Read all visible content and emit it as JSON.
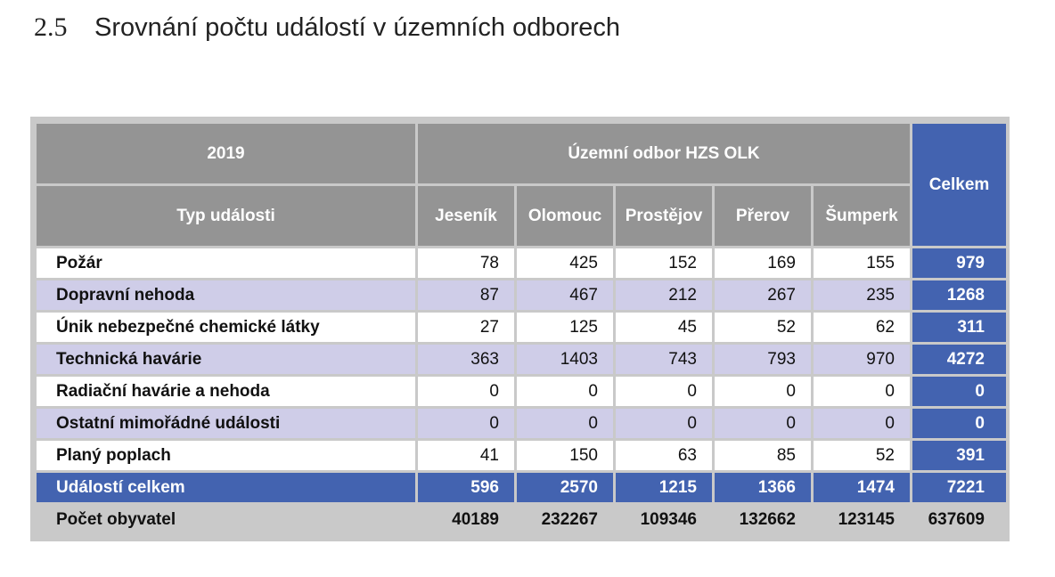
{
  "section": {
    "number": "2.5",
    "title": "Srovnání počtu událostí v územních odborech"
  },
  "table": {
    "year": "2019",
    "group_header": "Územní odbor HZS OLK",
    "type_header": "Typ události",
    "total_header": "Celkem",
    "columns": [
      "Jeseník",
      "Olomouc",
      "Prostějov",
      "Přerov",
      "Šumperk"
    ],
    "rows": [
      {
        "label": "Požár",
        "values": [
          "78",
          "425",
          "152",
          "169",
          "155"
        ],
        "total": "979"
      },
      {
        "label": "Dopravní nehoda",
        "values": [
          "87",
          "467",
          "212",
          "267",
          "235"
        ],
        "total": "1268"
      },
      {
        "label": "Únik nebezpečné chemické látky",
        "values": [
          "27",
          "125",
          "45",
          "52",
          "62"
        ],
        "total": "311"
      },
      {
        "label": "Technická havárie",
        "values": [
          "363",
          "1403",
          "743",
          "793",
          "970"
        ],
        "total": "4272"
      },
      {
        "label": "Radiační havárie a nehoda",
        "values": [
          "0",
          "0",
          "0",
          "0",
          "0"
        ],
        "total": "0"
      },
      {
        "label": "Ostatní mimořádné události",
        "values": [
          "0",
          "0",
          "0",
          "0",
          "0"
        ],
        "total": "0"
      },
      {
        "label": "Planý poplach",
        "values": [
          "41",
          "150",
          "63",
          "85",
          "52"
        ],
        "total": "391"
      }
    ],
    "sum_row": {
      "label": "Událostí celkem",
      "values": [
        "596",
        "2570",
        "1215",
        "1366",
        "1474"
      ],
      "total": "7221"
    },
    "population_row": {
      "label": "Počet obyvatel",
      "values": [
        "40189",
        "232267",
        "109346",
        "132662",
        "123145"
      ],
      "total": "637609"
    }
  },
  "colors": {
    "header_gray": "#949494",
    "total_blue": "#4363b0",
    "alt_row_lavender": "#cfcde8",
    "frame_gray": "#c9c9c9"
  }
}
